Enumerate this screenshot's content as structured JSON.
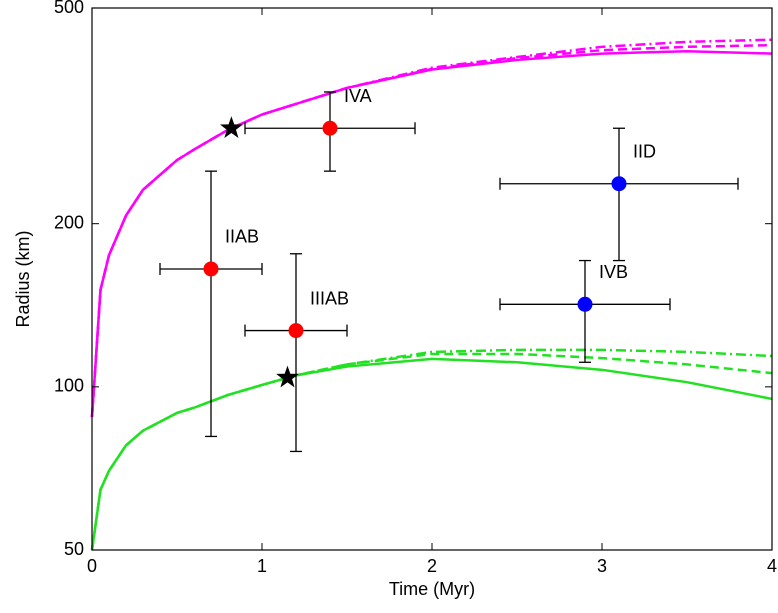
{
  "chart_data": {
    "type": "scatter",
    "x_label": "Time (Myr)",
    "y_label": "Radius (km)",
    "xlim": [
      0,
      4
    ],
    "ylim": [
      50,
      500
    ],
    "xticks": [
      0,
      1,
      2,
      3,
      4
    ],
    "yticks": [
      50,
      100,
      200,
      500
    ],
    "y_scale": "log",
    "curves": [
      {
        "color": "#ff00ff",
        "style": "solid",
        "x": [
          0,
          0.05,
          0.1,
          0.2,
          0.3,
          0.5,
          0.6,
          0.8,
          1.0,
          1.5,
          2.0,
          2.5,
          3.0,
          3.5,
          4.0
        ],
        "values": [
          88,
          151,
          175,
          207,
          231,
          262,
          274,
          298,
          318,
          356,
          385,
          401,
          412,
          416,
          412
        ]
      },
      {
        "color": "#ff00ff",
        "style": "dashed",
        "x": [
          0,
          0.05,
          0.1,
          0.2,
          0.3,
          0.5,
          0.6,
          0.8,
          1.0,
          1.5,
          2.0,
          2.5,
          3.0,
          3.5,
          4.0
        ],
        "values": [
          88,
          151,
          175,
          207,
          231,
          262,
          274,
          298,
          318,
          356,
          386,
          404,
          418,
          424,
          427
        ]
      },
      {
        "color": "#ff00ff",
        "style": "dashdot",
        "x": [
          0,
          0.05,
          0.1,
          0.2,
          0.3,
          0.5,
          0.6,
          0.8,
          1.0,
          1.5,
          2.0,
          2.5,
          3.0,
          3.5,
          4.0
        ],
        "values": [
          88,
          151,
          175,
          207,
          231,
          262,
          274,
          298,
          318,
          356,
          388,
          406,
          424,
          433,
          437
        ]
      },
      {
        "color": "#22e022",
        "style": "solid",
        "x": [
          0,
          0.05,
          0.1,
          0.2,
          0.3,
          0.5,
          0.6,
          0.8,
          1.0,
          1.2,
          1.5,
          2.0,
          2.5,
          3.0,
          3.5,
          4.0
        ],
        "values": [
          50,
          64.6,
          70,
          78,
          83,
          89.5,
          91.5,
          96.6,
          100.8,
          105,
          109,
          112.6,
          111,
          107.5,
          102,
          95
        ]
      },
      {
        "color": "#22e022",
        "style": "dashed",
        "x": [
          0,
          0.05,
          0.1,
          0.2,
          0.3,
          0.5,
          0.6,
          0.8,
          1.0,
          1.2,
          1.5,
          2.0,
          2.5,
          3.0,
          3.5,
          4.0
        ],
        "values": [
          50,
          64.6,
          70,
          78,
          83,
          89.5,
          91.5,
          96.6,
          100.8,
          105,
          110,
          115,
          115,
          113,
          110,
          106
        ]
      },
      {
        "color": "#22e022",
        "style": "dashdot",
        "x": [
          0,
          0.05,
          0.1,
          0.2,
          0.3,
          0.5,
          0.6,
          0.8,
          1.0,
          1.2,
          1.5,
          2.0,
          2.5,
          3.0,
          3.5,
          4.0
        ],
        "values": [
          50,
          64.6,
          70,
          78,
          83,
          89.5,
          91.5,
          96.6,
          100.8,
          105,
          110,
          116,
          117,
          117,
          116,
          114
        ]
      }
    ],
    "points": [
      {
        "label": "IVA",
        "color": "#ff0000",
        "x": 1.4,
        "y": 300,
        "xlow": 0.9,
        "xhigh": 1.9,
        "ylow": 250,
        "yhigh": 350
      },
      {
        "label": "IIAB",
        "color": "#ff0000",
        "x": 0.7,
        "y": 165,
        "xlow": 0.4,
        "xhigh": 1.0,
        "ylow": 81,
        "yhigh": 250
      },
      {
        "label": "IIIAB",
        "color": "#ff0000",
        "x": 1.2,
        "y": 127,
        "xlow": 0.9,
        "xhigh": 1.5,
        "ylow": 76,
        "yhigh": 176
      },
      {
        "label": "IID",
        "color": "#0000ff",
        "x": 3.1,
        "y": 237,
        "xlow": 2.4,
        "xhigh": 3.8,
        "ylow": 171,
        "yhigh": 300
      },
      {
        "label": "IVB",
        "color": "#0000ff",
        "x": 2.9,
        "y": 142,
        "xlow": 2.4,
        "xhigh": 3.4,
        "ylow": 111,
        "yhigh": 171
      }
    ],
    "stars": {
      "color": "#000000",
      "x": [
        0.82,
        1.15
      ],
      "values": [
        300,
        104
      ]
    }
  }
}
